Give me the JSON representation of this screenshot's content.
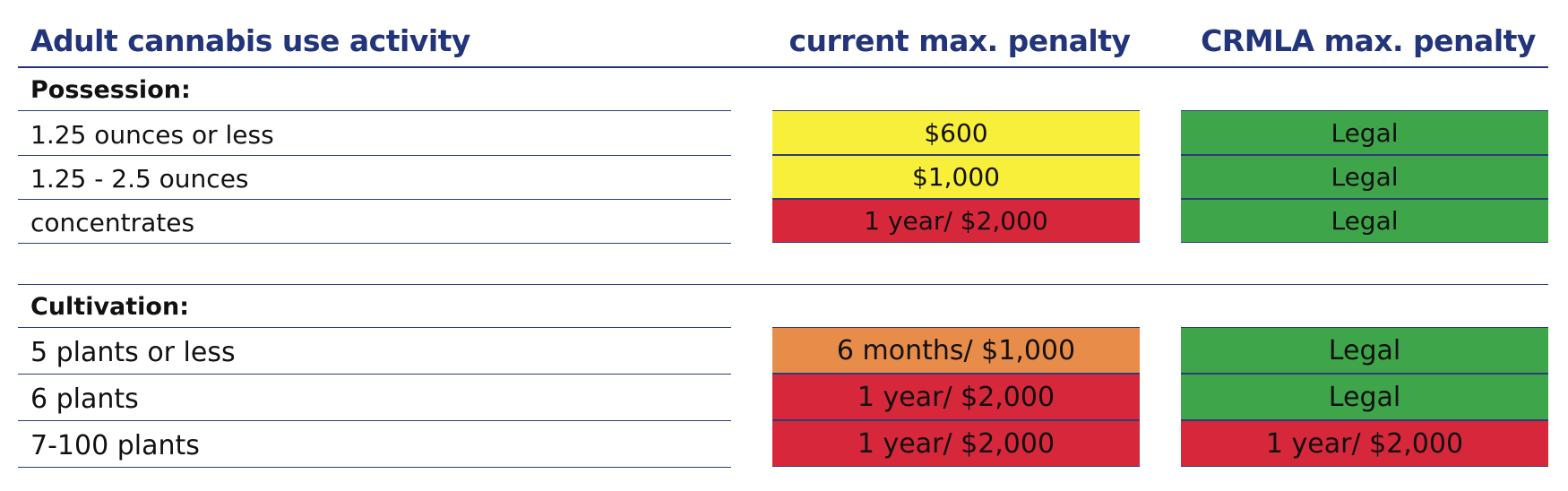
{
  "header": {
    "activity": "Adult cannabis use activity",
    "current": "current max. penalty",
    "crmla": "CRMLA max. penalty"
  },
  "sections": [
    {
      "title": "Possession:",
      "rows": [
        {
          "label": "1.25 ounces or less",
          "current": "$600",
          "current_color": "#f8ef3b",
          "crmla": "Legal",
          "crmla_color": "#3fa54a"
        },
        {
          "label": "1.25 - 2.5 ounces",
          "current": "$1,000",
          "current_color": "#f8ef3b",
          "crmla": "Legal",
          "crmla_color": "#3fa54a"
        },
        {
          "label": "concentrates",
          "current": "1 year/ $2,000",
          "current_color": "#d7273b",
          "crmla": "Legal",
          "crmla_color": "#3fa54a"
        }
      ]
    },
    {
      "title": "Cultivation:",
      "rows": [
        {
          "label": "5 plants or less",
          "current": "6 months/ $1,000",
          "current_color": "#e88c4a",
          "crmla": "Legal",
          "crmla_color": "#3fa54a"
        },
        {
          "label": "6 plants",
          "current": "1 year/ $2,000",
          "current_color": "#d7273b",
          "crmla": "Legal",
          "crmla_color": "#3fa54a"
        },
        {
          "label": "7-100 plants",
          "current": "1 year/ $2,000",
          "current_color": "#d7273b",
          "crmla": "1 year/ $2,000",
          "crmla_color": "#d7273b"
        }
      ]
    }
  ]
}
